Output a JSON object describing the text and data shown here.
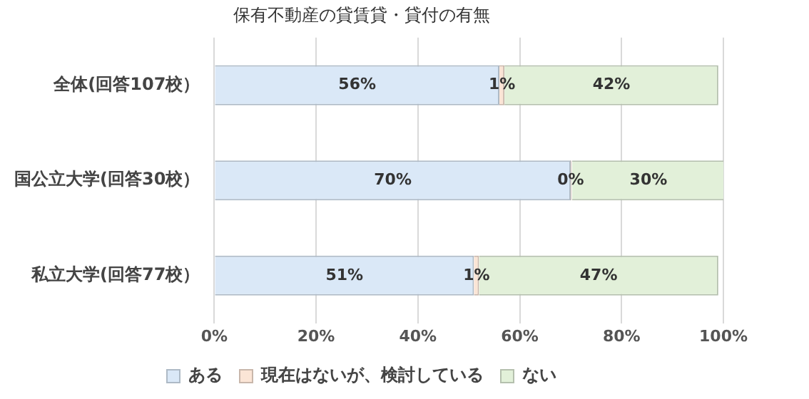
{
  "chart_data": {
    "type": "bar",
    "orientation": "horizontal",
    "stacked": true,
    "title": "保有不動産の貸賃貸・貸付の有無",
    "categories": [
      "全体(回答107校）",
      "国公立大学(回答30校）",
      "私立大学(回答77校）"
    ],
    "series": [
      {
        "name": "ある",
        "color": "#dae8f7",
        "values": [
          56,
          70,
          51
        ],
        "value_labels": [
          "56%",
          "70%",
          "51%"
        ]
      },
      {
        "name": "現在はないが、検討している",
        "color": "#fbe5d6",
        "values": [
          1,
          0,
          1
        ],
        "value_labels": [
          "1%",
          "0%",
          "1%"
        ]
      },
      {
        "name": "ない",
        "color": "#e2f0d9",
        "values": [
          42,
          30,
          47
        ],
        "value_labels": [
          "42%",
          "30%",
          "47%"
        ]
      }
    ],
    "xlim": [
      0,
      100
    ],
    "xticks": [
      {
        "value": 0,
        "label": "0%"
      },
      {
        "value": 20,
        "label": "20%"
      },
      {
        "value": 40,
        "label": "40%"
      },
      {
        "value": 60,
        "label": "60%"
      },
      {
        "value": 80,
        "label": "80%"
      },
      {
        "value": 100,
        "label": "100%"
      }
    ],
    "grid": "x",
    "legend": "bottom"
  }
}
